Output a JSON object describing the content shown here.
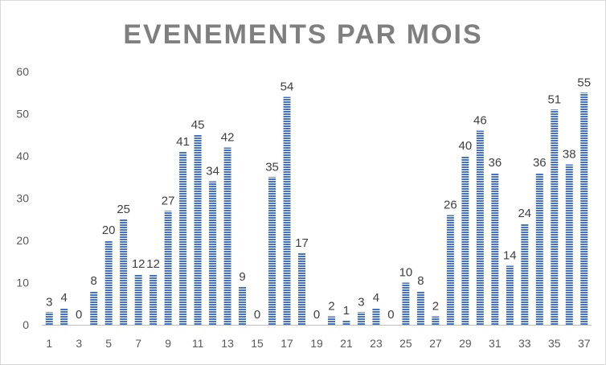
{
  "chart_data": {
    "type": "bar",
    "title": "EVENEMENTS PAR MOIS",
    "xlabel": "",
    "ylabel": "",
    "categories": [
      "1",
      "2",
      "3",
      "4",
      "5",
      "6",
      "7",
      "8",
      "9",
      "10",
      "11",
      "12",
      "13",
      "14",
      "15",
      "16",
      "17",
      "18",
      "19",
      "20",
      "21",
      "22",
      "23",
      "24",
      "25",
      "26",
      "27",
      "28",
      "29",
      "30",
      "31",
      "32",
      "33",
      "34",
      "35",
      "36",
      "37"
    ],
    "values": [
      3,
      4,
      0,
      8,
      20,
      25,
      12,
      12,
      27,
      41,
      45,
      34,
      42,
      9,
      0,
      35,
      54,
      17,
      0,
      2,
      1,
      3,
      4,
      0,
      10,
      8,
      2,
      26,
      40,
      46,
      36,
      14,
      24,
      36,
      51,
      38,
      55
    ],
    "ylim": [
      0,
      60
    ],
    "yticks": [
      0,
      10,
      20,
      30,
      40,
      50,
      60
    ],
    "xtick_labels": [
      "1",
      "3",
      "5",
      "7",
      "9",
      "11",
      "13",
      "15",
      "17",
      "19",
      "21",
      "23",
      "25",
      "27",
      "29",
      "31",
      "33",
      "35",
      "37"
    ],
    "bar_color": "#4472c4",
    "bar_fill": "striped",
    "grid": false,
    "legend": "none",
    "data_labels": true
  }
}
